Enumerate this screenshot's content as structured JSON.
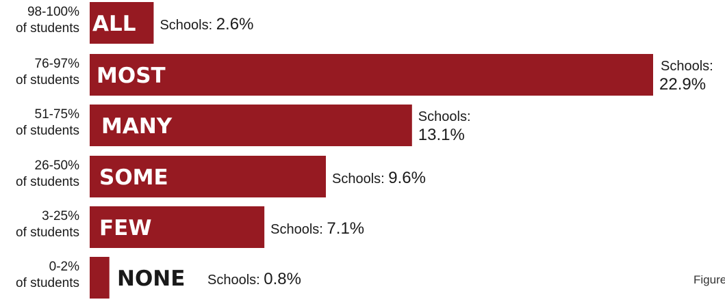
{
  "chart_data": {
    "type": "bar",
    "orientation": "horizontal",
    "categories": [
      [
        "98-100%",
        "of students"
      ],
      [
        "76-97%",
        "of students"
      ],
      [
        "51-75%",
        "of students"
      ],
      [
        "26-50%",
        "of students"
      ],
      [
        "3-25%",
        "of students"
      ],
      [
        "0-2%",
        "of students"
      ]
    ],
    "bar_labels": [
      "ALL",
      "MOST",
      "MANY",
      "SOME",
      "FEW",
      "NONE"
    ],
    "values": [
      2.6,
      22.9,
      13.1,
      9.6,
      7.1,
      0.8
    ],
    "value_prefix": "Schools:",
    "value_suffix": "%",
    "xlim": [
      0,
      23
    ],
    "grid": false,
    "colors": {
      "bar": "#961A22",
      "bar_label": "#ffffff",
      "bar_label_outside": "#1a1a1a"
    }
  },
  "figure_note": "Figure"
}
